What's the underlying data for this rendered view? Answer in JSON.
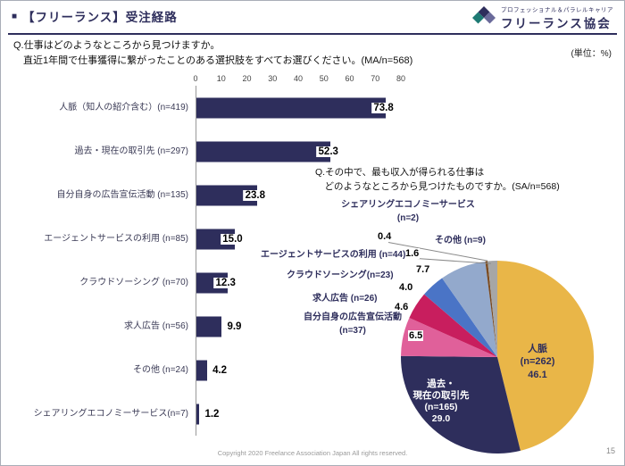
{
  "header": {
    "bullet": "■",
    "title": "【フリーランス】受注経路",
    "logo": {
      "tagline": "プロフェッショナル＆パラレルキャリア",
      "name": "フリーランス協会"
    }
  },
  "unit_label": "(単位：%)",
  "bar_question": "Q.仕事はどのようなところから見つけますか。\n　直近1年間で仕事獲得に繋がったことのある選択肢をすべてお選びください。(MA/n=568)",
  "pie_question": "Q.その中で、最も収入が得られる仕事は\n　どのようなところから見つけたものですか。(SA/n=568)",
  "chart_data": [
    {
      "type": "bar",
      "orientation": "horizontal",
      "title": "Q.仕事はどのようなところから見つけますか。直近1年間で仕事獲得に繋がったことのある選択肢をすべてお選びください。(MA/n=568)",
      "categories": [
        "人脈（知人の紹介含む）(n=419)",
        "過去・現在の取引先 (n=297)",
        "自分自身の広告宣伝活動 (n=135)",
        "エージェントサービスの利用 (n=85)",
        "クラウドソーシング (n=70)",
        "求人広告 (n=56)",
        "その他 (n=24)",
        "シェアリングエコノミーサービス(n=7)"
      ],
      "values": [
        73.8,
        52.3,
        23.8,
        15.0,
        12.3,
        9.9,
        4.2,
        1.2
      ],
      "xlim": [
        0,
        80
      ],
      "xticks": [
        0,
        10,
        20,
        30,
        40,
        50,
        60,
        70,
        80
      ],
      "bar_color": "#2e2e5c",
      "unit": "%",
      "grid": false
    },
    {
      "type": "pie",
      "title": "Q.その中で、最も収入が得られる仕事はどのようなところから見つけたものですか。(SA/n=568)",
      "labels": [
        "人脈 (n=262)",
        "過去・現在の取引先 (n=165)",
        "自分自身の広告宣伝活動 (n=37)",
        "求人広告 (n=26)",
        "クラウドソーシング (n=23)",
        "エージェントサービスの利用 (n=44)",
        "シェアリングエコノミーサービス (n=2)",
        "その他 (n=9)"
      ],
      "values": [
        46.1,
        29.0,
        6.5,
        4.6,
        4.0,
        7.7,
        0.4,
        1.6
      ],
      "colors": [
        "#e9b648",
        "#2e2e5c",
        "#e0609a",
        "#c81e5e",
        "#4a74c6",
        "#93a9cc",
        "#7b4b21",
        "#a6a6a6"
      ],
      "start_angle_deg": 0,
      "direction": "clockwise",
      "unit": "%"
    }
  ],
  "pie_labels": {
    "sharing": "シェアリングエコノミーサービス\n(n=2)",
    "sharing_value": "0.4",
    "other": "その他 (n=9)",
    "other_value": "1.6",
    "agent": "エージェントサービスの利用 (n=44)",
    "agent_value": "7.7",
    "crowdsourcing": "クラウドソーシング(n=23)",
    "crowdsourcing_value": "4.0",
    "job_ads": "求人広告 (n=26)",
    "job_ads_value": "4.6",
    "self_promotion": "自分自身の広告宣伝活動\n(n=37)",
    "self_promotion_value": "6.5",
    "network": "人脈\n(n=262)\n46.1",
    "clients": "過去・\n現在の取引先\n(n=165)\n29.0"
  },
  "footer": {
    "copyright": "Copyright 2020 Freelance Association Japan  All rights reserved.",
    "page": "15"
  }
}
